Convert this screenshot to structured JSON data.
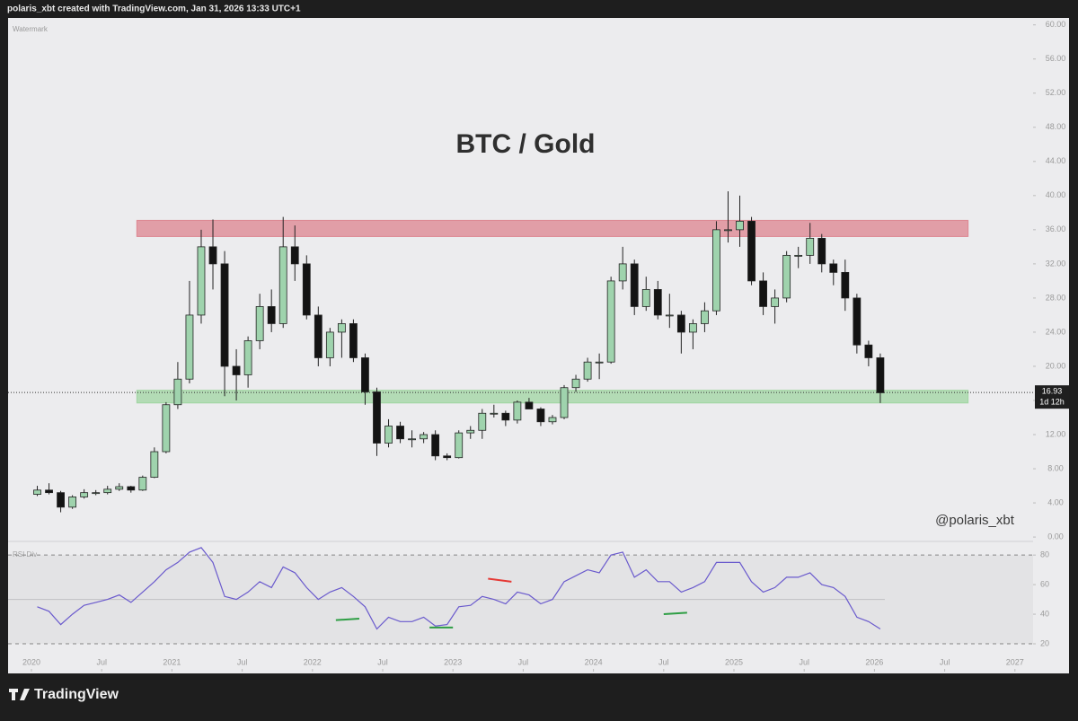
{
  "header": {
    "text": "polaris_xbt created with TradingView.com, Jan 31, 2026 13:33 UTC+1"
  },
  "chart_data": {
    "type": "candlestick",
    "title": "BTC / Gold",
    "watermark": "Watermark",
    "annotation": "@polaris_xbt",
    "x": [
      "2020-01",
      "2020-02",
      "2020-03",
      "2020-04",
      "2020-05",
      "2020-06",
      "2020-07",
      "2020-08",
      "2020-09",
      "2020-10",
      "2020-11",
      "2020-12",
      "2021-01",
      "2021-02",
      "2021-03",
      "2021-04",
      "2021-05",
      "2021-06",
      "2021-07",
      "2021-08",
      "2021-09",
      "2021-10",
      "2021-11",
      "2021-12",
      "2022-01",
      "2022-02",
      "2022-03",
      "2022-04",
      "2022-05",
      "2022-06",
      "2022-07",
      "2022-08",
      "2022-09",
      "2022-10",
      "2022-11",
      "2022-12",
      "2023-01",
      "2023-02",
      "2023-03",
      "2023-04",
      "2023-05",
      "2023-06",
      "2023-07",
      "2023-08",
      "2023-09",
      "2023-10",
      "2023-11",
      "2023-12",
      "2024-01",
      "2024-02",
      "2024-03",
      "2024-04",
      "2024-05",
      "2024-06",
      "2024-07",
      "2024-08",
      "2024-09",
      "2024-10",
      "2024-11",
      "2024-12",
      "2025-01",
      "2025-02",
      "2025-03",
      "2025-04",
      "2025-05",
      "2025-06",
      "2025-07",
      "2025-08",
      "2025-09",
      "2025-10",
      "2025-11",
      "2025-12",
      "2026-01"
    ],
    "open": [
      5.0,
      5.5,
      5.2,
      3.5,
      4.7,
      5.2,
      5.2,
      5.6,
      5.9,
      5.5,
      7.0,
      10.0,
      15.5,
      18.5,
      26.0,
      34.0,
      32.0,
      20.0,
      19.0,
      23.0,
      27.0,
      25.0,
      34.0,
      32.0,
      26.0,
      21.0,
      24.0,
      25.0,
      21.0,
      17.0,
      11.0,
      13.0,
      11.5,
      11.5,
      12.0,
      9.5,
      9.3,
      12.2,
      12.5,
      14.5,
      14.5,
      13.7,
      15.8,
      15.0,
      13.5,
      14.0,
      17.5,
      18.5,
      20.5,
      20.5,
      30.0,
      32.0,
      27.0,
      29.0,
      26.0,
      26.0,
      24.0,
      25.0,
      26.5,
      36.0,
      36.0,
      37.0,
      30.0,
      27.0,
      28.0,
      33.0,
      33.0,
      35.0,
      32.0,
      31.0,
      28.0,
      22.5,
      21.0
    ],
    "high": [
      6.0,
      6.3,
      5.4,
      4.9,
      5.6,
      5.5,
      6.0,
      6.3,
      6.0,
      7.2,
      10.5,
      15.8,
      20.5,
      30.0,
      36.0,
      37.2,
      33.5,
      22.0,
      23.5,
      28.5,
      29.0,
      37.5,
      36.5,
      33.0,
      27.0,
      24.5,
      25.5,
      25.5,
      21.5,
      17.5,
      13.8,
      13.5,
      12.5,
      12.3,
      12.5,
      9.8,
      12.5,
      13.0,
      15.0,
      15.5,
      14.8,
      16.0,
      16.3,
      15.2,
      14.3,
      17.8,
      19.0,
      21.0,
      21.5,
      30.5,
      34.0,
      32.5,
      30.5,
      30.0,
      28.5,
      26.5,
      25.5,
      27.5,
      37.0,
      40.5,
      40.0,
      37.5,
      31.0,
      29.0,
      33.5,
      34.0,
      36.8,
      35.5,
      32.5,
      32.5,
      28.5,
      23.0,
      21.5
    ],
    "low": [
      4.8,
      5.0,
      2.9,
      3.3,
      4.5,
      4.9,
      5.0,
      5.4,
      5.2,
      5.4,
      6.9,
      9.8,
      15.0,
      18.0,
      25.0,
      29.0,
      16.5,
      16.0,
      17.5,
      22.0,
      24.0,
      24.5,
      30.0,
      25.5,
      20.0,
      20.0,
      21.0,
      20.5,
      15.5,
      9.5,
      10.5,
      11.0,
      10.5,
      11.0,
      9.0,
      9.0,
      9.2,
      11.5,
      11.5,
      14.0,
      13.0,
      13.3,
      15.0,
      13.0,
      13.2,
      13.8,
      17.0,
      18.2,
      18.5,
      20.3,
      29.0,
      26.0,
      26.5,
      25.5,
      24.5,
      21.5,
      22.0,
      24.0,
      26.0,
      34.5,
      34.0,
      29.5,
      26.0,
      25.0,
      27.5,
      31.5,
      32.0,
      31.0,
      29.5,
      26.5,
      21.5,
      20.0,
      15.7
    ],
    "close": [
      5.5,
      5.2,
      3.5,
      4.7,
      5.2,
      5.2,
      5.6,
      5.9,
      5.5,
      7.0,
      10.0,
      15.5,
      18.5,
      26.0,
      34.0,
      32.0,
      20.0,
      19.0,
      23.0,
      27.0,
      25.0,
      34.0,
      32.0,
      26.0,
      21.0,
      24.0,
      25.0,
      21.0,
      17.0,
      11.0,
      13.0,
      11.5,
      11.5,
      12.0,
      9.5,
      9.3,
      12.2,
      12.5,
      14.5,
      14.5,
      13.7,
      15.8,
      15.0,
      13.5,
      14.0,
      17.5,
      18.5,
      20.5,
      20.5,
      30.0,
      32.0,
      27.0,
      29.0,
      26.0,
      26.0,
      24.0,
      25.0,
      26.5,
      36.0,
      36.0,
      37.0,
      30.0,
      27.0,
      28.0,
      33.0,
      33.0,
      35.0,
      32.0,
      31.0,
      28.0,
      22.5,
      21.0,
      16.9
    ],
    "up_color": "#9fd3ad",
    "down_color": "#131313",
    "ylim": [
      -0.2,
      60.6
    ],
    "yticks": [
      {
        "value": 0,
        "label": "0.00"
      },
      {
        "value": 4,
        "label": "4.00"
      },
      {
        "value": 8,
        "label": "8.00"
      },
      {
        "value": 12,
        "label": "12.00"
      },
      {
        "value": 16,
        "label": "16.00"
      },
      {
        "value": 20,
        "label": "20.00"
      },
      {
        "value": 24,
        "label": "24.00"
      },
      {
        "value": 28,
        "label": "28.00"
      },
      {
        "value": 32,
        "label": "32.00"
      },
      {
        "value": 36,
        "label": "36.00"
      },
      {
        "value": 40,
        "label": "40.00"
      },
      {
        "value": 44,
        "label": "44.00"
      },
      {
        "value": 48,
        "label": "48.00"
      },
      {
        "value": 52,
        "label": "52.00"
      },
      {
        "value": 56,
        "label": "56.00"
      },
      {
        "value": 60,
        "label": "60.00"
      }
    ],
    "xticks": [
      {
        "value": "2020-01",
        "label": "2020"
      },
      {
        "value": "2020-07",
        "label": "Jul"
      },
      {
        "value": "2021-01",
        "label": "2021"
      },
      {
        "value": "2021-07",
        "label": "Jul"
      },
      {
        "value": "2022-01",
        "label": "2022"
      },
      {
        "value": "2022-07",
        "label": "Jul"
      },
      {
        "value": "2023-01",
        "label": "2023"
      },
      {
        "value": "2023-07",
        "label": "Jul"
      },
      {
        "value": "2024-01",
        "label": "2024"
      },
      {
        "value": "2024-07",
        "label": "Jul"
      },
      {
        "value": "2025-01",
        "label": "2025"
      },
      {
        "value": "2025-07",
        "label": "Jul"
      },
      {
        "value": "2026-01",
        "label": "2026"
      },
      {
        "value": "2026-07",
        "label": "Jul"
      },
      {
        "value": "2027-01",
        "label": "2027"
      }
    ],
    "zones": [
      {
        "low": 35.2,
        "high": 37.1,
        "start": "2020-10",
        "end": "2026-09",
        "color": "rgba(214,80,95,0.5)"
      },
      {
        "low": 15.7,
        "high": 17.2,
        "start": "2020-10",
        "end": "2026-09",
        "color": "rgba(110,200,110,0.45)"
      }
    ],
    "last_price": 16.93,
    "countdown": "1d 12h",
    "rsi": {
      "label": "RSI Div",
      "color": "#6a5acd",
      "values": [
        45,
        42,
        33,
        40,
        46,
        48,
        50,
        53,
        48,
        55,
        62,
        70,
        75,
        82,
        85,
        75,
        52,
        50,
        55,
        62,
        58,
        72,
        68,
        58,
        50,
        55,
        58,
        52,
        45,
        30,
        38,
        35,
        35,
        38,
        32,
        33,
        45,
        46,
        52,
        50,
        47,
        55,
        53,
        47,
        50,
        62,
        66,
        70,
        68,
        80,
        82,
        65,
        70,
        62,
        62,
        55,
        58,
        62,
        75,
        75,
        75,
        62,
        55,
        58,
        65,
        65,
        68,
        60,
        58,
        52,
        38,
        35,
        30
      ],
      "ylim": [
        3,
        88
      ],
      "yticks": [
        20,
        40,
        60,
        80
      ],
      "levels": [
        80,
        50,
        20
      ],
      "divergences": [
        {
          "x": [
            "2022-03",
            "2022-05"
          ],
          "values": [
            36,
            37
          ],
          "color": "#2e9e44"
        },
        {
          "x": [
            "2022-11",
            "2023-01"
          ],
          "values": [
            31,
            31
          ],
          "color": "#2e9e44"
        },
        {
          "x": [
            "2023-04",
            "2023-06"
          ],
          "values": [
            64,
            62
          ],
          "color": "#e53935"
        },
        {
          "x": [
            "2024-07",
            "2024-09"
          ],
          "values": [
            40,
            41
          ],
          "color": "#2e9e44"
        }
      ]
    }
  },
  "footer": {
    "logo": "TradingView"
  }
}
